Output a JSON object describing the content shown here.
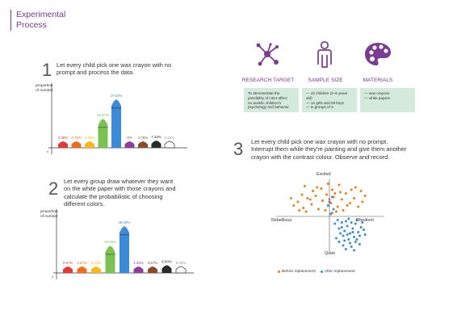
{
  "title": {
    "line1": "Experimental",
    "line2": "Process"
  },
  "step1": {
    "num": "1",
    "text1": "Let every child pick one wax crayon with no",
    "text2": "prompt and process the data."
  },
  "step2": {
    "num": "2",
    "text1": "Let every group draw whatever they want",
    "text2": "on the white paper with those crayons and",
    "text3": "calculate the probabilistic of choosing",
    "text4": "different colors."
  },
  "step3": {
    "num": "3",
    "text1": "Let every child pick one wax crayon with no prompt.",
    "text2": "Interrupt them while they're painting and give them another",
    "text3": "crayon with the contrast colour. Observe and record."
  },
  "panels": [
    {
      "icon": "network-molecule-icon",
      "title": "RESEARCH TARGET",
      "lines": [
        "To demonstrate the",
        "possibility of color effect",
        "on autistic children's",
        "psychology and behavior."
      ]
    },
    {
      "icon": "person-icon",
      "title": "SAMPLE SIZE",
      "lines": [
        "— 42 children (2–6 years",
        "   old)",
        "— 14 girls and 28 boys",
        "— in groups of 3"
      ]
    },
    {
      "icon": "palette-icon",
      "title": "MATERIALS",
      "lines": [
        "— wax crayons",
        "— white papers"
      ]
    }
  ],
  "chart_data": [
    {
      "type": "bar",
      "ylabel": "proportion of number",
      "origin_label": "o",
      "categories": [
        "red",
        "orange",
        "yellow",
        "green",
        "blue",
        "purple",
        "brown",
        "black",
        "white"
      ],
      "values": [
        2.38,
        4.76,
        2.38,
        28.57,
        47.62,
        0,
        4.76,
        7.15,
        2.33
      ],
      "labels": [
        "2.38%",
        "4.76%",
        "2.38%",
        "28.57%",
        "47.62%",
        "0%",
        "4.76%",
        "7.15%",
        "2.33%"
      ],
      "colors": [
        "#e53935",
        "#ef6c1a",
        "#f9b91a",
        "#7cc152",
        "#3d8bd6",
        "#8e3d9c",
        "#8d4a2b",
        "#2b2b2b",
        "#ffffff"
      ]
    },
    {
      "type": "bar",
      "ylabel": "proportion of number",
      "origin_label": "o",
      "categories": [
        "red",
        "orange",
        "yellow",
        "green",
        "blue",
        "purple",
        "brown",
        "black",
        "white"
      ],
      "values": [
        2.67,
        2.67,
        5.33,
        28.0,
        48.0,
        1.33,
        4.67,
        8.0,
        5.33
      ],
      "labels": [
        "2.67%",
        "2.67%",
        "5.33%",
        "28.00%",
        "48.00%",
        "1.33%",
        "4.67%",
        "8.00%",
        "5.33%"
      ],
      "colors": [
        "#e53935",
        "#ef6c1a",
        "#f9b91a",
        "#7cc152",
        "#3d8bd6",
        "#8e3d9c",
        "#8d4a2b",
        "#2b2b2b",
        "#ffffff"
      ]
    },
    {
      "type": "scatter",
      "quadrants": {
        "top": "Excited",
        "bottom": "Quiet",
        "left": "Rebellious",
        "right": "Obedient"
      },
      "series": [
        {
          "name": "Before replacement",
          "color": "#ef7d22",
          "points": [
            [
              -2.6,
              0.9
            ],
            [
              -2.3,
              1.2
            ],
            [
              -1.9,
              0.7
            ],
            [
              -1.6,
              1.5
            ],
            [
              -1.3,
              1.0
            ],
            [
              -1.0,
              1.7
            ],
            [
              -0.8,
              0.6
            ],
            [
              -0.5,
              1.3
            ],
            [
              -0.2,
              1.8
            ],
            [
              0.1,
              1.1
            ],
            [
              0.3,
              1.6
            ],
            [
              0.6,
              0.8
            ],
            [
              0.9,
              1.4
            ],
            [
              1.2,
              1.9
            ],
            [
              1.5,
              1.1
            ],
            [
              1.8,
              1.5
            ],
            [
              2.1,
              0.8
            ],
            [
              2.4,
              1.2
            ],
            [
              -2.0,
              1.8
            ],
            [
              -1.2,
              2.1
            ],
            [
              -0.6,
              2.3
            ],
            [
              0.2,
              2.2
            ],
            [
              0.8,
              2.0
            ],
            [
              1.6,
              2.2
            ],
            [
              -2.8,
              1.5
            ],
            [
              -1.7,
              0.4
            ],
            [
              -0.3,
              0.5
            ],
            [
              0.5,
              0.4
            ],
            [
              1.0,
              0.5
            ],
            [
              2.6,
              1.7
            ],
            [
              -1.4,
              1.4
            ],
            [
              0.0,
              1.4
            ],
            [
              0.4,
              1.9
            ],
            [
              -0.9,
              2.4
            ],
            [
              1.3,
              0.9
            ],
            [
              -2.2,
              0.5
            ],
            [
              0.7,
              2.6
            ],
            [
              -0.1,
              2.7
            ],
            [
              1.9,
              2.4
            ],
            [
              -1.8,
              2.5
            ],
            [
              2.3,
              2.1
            ],
            [
              0.2,
              0.3
            ]
          ]
        },
        {
          "name": "After replacement",
          "color": "#3d8bd6",
          "points": [
            [
              0.4,
              -0.6
            ],
            [
              0.7,
              -1.0
            ],
            [
              0.9,
              -0.5
            ],
            [
              1.1,
              -1.2
            ],
            [
              1.3,
              -0.8
            ],
            [
              1.5,
              -1.4
            ],
            [
              1.7,
              -1.0
            ],
            [
              1.9,
              -0.6
            ],
            [
              2.1,
              -1.3
            ],
            [
              2.3,
              -0.9
            ],
            [
              1.0,
              -1.6
            ],
            [
              1.4,
              -1.9
            ],
            [
              1.8,
              -1.7
            ],
            [
              2.2,
              -1.6
            ],
            [
              1.2,
              -0.4
            ],
            [
              1.6,
              -0.5
            ],
            [
              2.0,
              -0.3
            ],
            [
              0.8,
              -1.4
            ],
            [
              1.1,
              -2.0
            ],
            [
              1.5,
              -2.2
            ],
            [
              1.9,
              -2.1
            ],
            [
              2.5,
              -1.1
            ],
            [
              0.6,
              -0.3
            ],
            [
              1.3,
              -1.5
            ],
            [
              1.7,
              -1.3
            ],
            [
              2.0,
              -1.9
            ],
            [
              0.9,
              -0.9
            ],
            [
              2.4,
              -0.5
            ],
            [
              1.0,
              -2.4
            ],
            [
              1.6,
              -2.5
            ],
            [
              0.3,
              0.6
            ],
            [
              0.0,
              1.2
            ],
            [
              0.2,
              1.6
            ],
            [
              -0.1,
              0.9
            ],
            [
              0.1,
              0.2
            ],
            [
              1.2,
              -2.7
            ],
            [
              2.6,
              -1.5
            ],
            [
              0.5,
              -1.8
            ],
            [
              1.4,
              -0.2
            ],
            [
              2.2,
              -2.3
            ],
            [
              1.8,
              -2.8
            ],
            [
              0.7,
              -2.1
            ]
          ]
        }
      ]
    }
  ]
}
